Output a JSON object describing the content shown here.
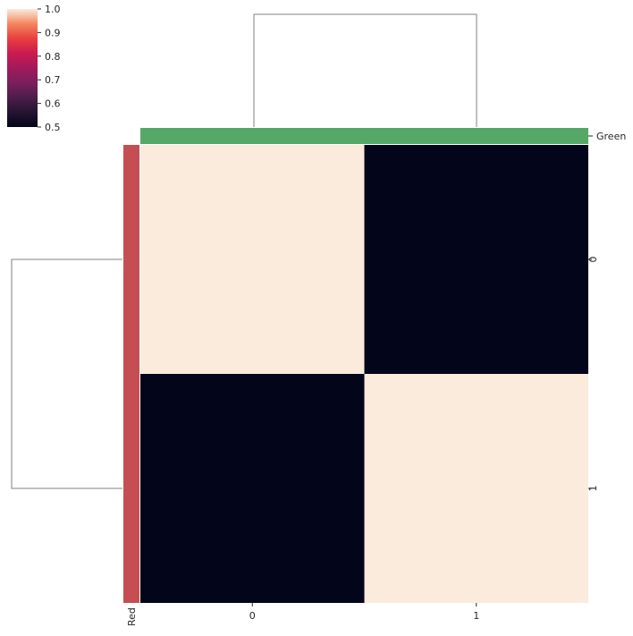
{
  "chart_data": {
    "type": "heatmap",
    "x_categories": [
      "0",
      "1"
    ],
    "y_categories": [
      "0",
      "1"
    ],
    "values": [
      [
        1.0,
        0.5
      ],
      [
        0.5,
        1.0
      ]
    ],
    "color_range": [
      0.5,
      1.0
    ],
    "colorbar_ticks": [
      "0.5",
      "0.6",
      "0.7",
      "0.8",
      "0.9",
      "1.0"
    ],
    "colorbar_tick_values": [
      0.5,
      0.6,
      0.7,
      0.8,
      0.9,
      1.0
    ],
    "colormap": "rocket",
    "col_colors_label": "Green",
    "row_colors_label": "Red",
    "col_color": "#55a868",
    "row_color": "#c44e52",
    "dendrogram_color": "#808080",
    "row_dendrogram": true,
    "col_dendrogram": true,
    "grid": false
  }
}
